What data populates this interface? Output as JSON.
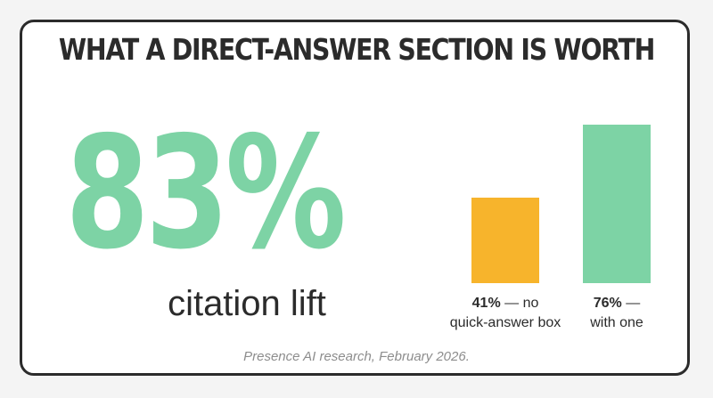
{
  "title": "WHAT A DIRECT-ANSWER SECTION IS WORTH",
  "headline": {
    "value": "83%",
    "label": "citation lift"
  },
  "source": "Presence AI research, February 2026.",
  "colors": {
    "green": "#7dd3a5",
    "orange": "#f7b42c",
    "text": "#2b2b2b",
    "muted": "#8d8d8d"
  },
  "chart_data": {
    "type": "bar",
    "title": "",
    "xlabel": "",
    "ylabel": "",
    "ylim": [
      0,
      76
    ],
    "grid": false,
    "categories": [
      "no quick-answer box",
      "with one"
    ],
    "values": [
      41,
      76
    ],
    "colors": [
      "#f7b42c",
      "#7dd3a5"
    ],
    "labels": [
      {
        "value": "41%",
        "rest": " — no",
        "line2": "quick-answer box"
      },
      {
        "value": "76%",
        "rest": " —",
        "line2": "with one"
      }
    ]
  }
}
